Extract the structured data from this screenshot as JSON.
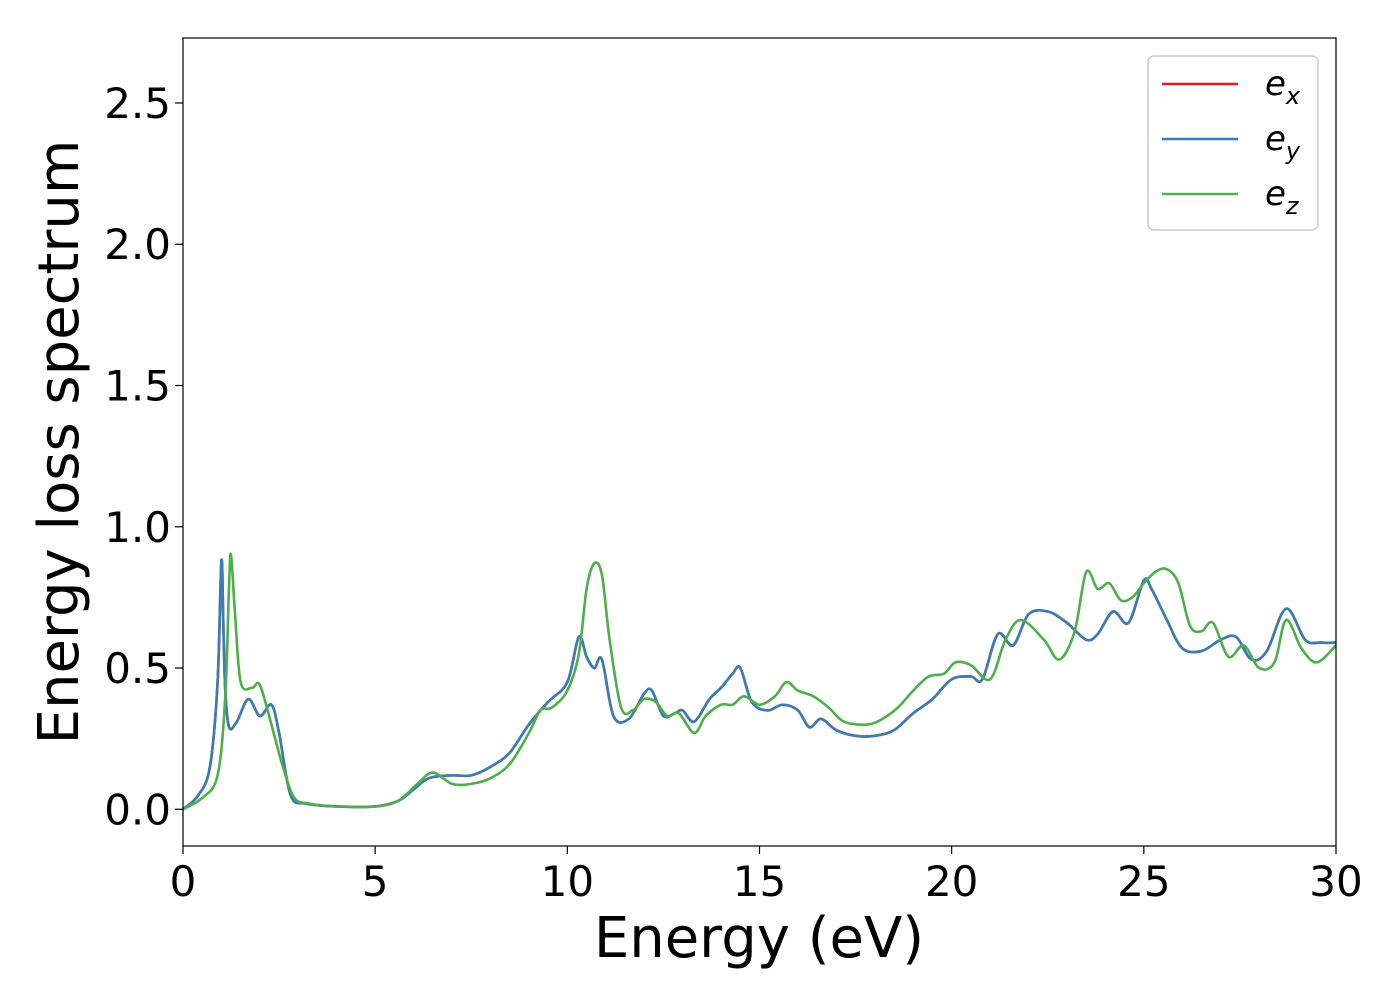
{
  "chart_data": {
    "type": "line",
    "title": "",
    "xlabel": "Energy (eV)",
    "ylabel": "Energy loss spectrum",
    "xlim": [
      0,
      30
    ],
    "ylim": [
      -0.13,
      2.73
    ],
    "xticks": [
      0,
      5,
      10,
      15,
      20,
      25,
      30
    ],
    "xtick_labels": [
      "0",
      "5",
      "10",
      "15",
      "20",
      "25",
      "30"
    ],
    "yticks": [
      0.0,
      0.5,
      1.0,
      1.5,
      2.0,
      2.5
    ],
    "ytick_labels": [
      "0.0",
      "0.5",
      "1.0",
      "1.5",
      "2.0",
      "2.5"
    ],
    "grid": false,
    "legend_position": "top-right",
    "series": [
      {
        "name": "e_x",
        "label_base": "e",
        "label_sub": "x",
        "color": "#e41a1c",
        "x": [
          0,
          0.4,
          0.7,
          0.9,
          1.0,
          1.05,
          1.1,
          1.2,
          1.4,
          1.7,
          2.0,
          2.3,
          2.5,
          2.8,
          3.2,
          4.0,
          5.0,
          5.6,
          6.0,
          6.4,
          7.0,
          7.5,
          8.0,
          8.5,
          9.0,
          9.5,
          10.0,
          10.3,
          10.5,
          10.7,
          10.9,
          11.2,
          11.6,
          12.0,
          12.2,
          12.5,
          12.8,
          13.0,
          13.3,
          13.7,
          14.0,
          14.3,
          14.5,
          14.8,
          15.2,
          15.6,
          16.0,
          16.3,
          16.6,
          17.0,
          17.5,
          18.0,
          18.5,
          19.0,
          19.5,
          20.0,
          20.5,
          20.8,
          21.2,
          21.6,
          22.0,
          22.5,
          23.0,
          23.5,
          23.8,
          24.2,
          24.6,
          25.0,
          25.2,
          25.6,
          26.0,
          26.5,
          27.0,
          27.4,
          27.8,
          28.2,
          28.7,
          29.2,
          29.6,
          30.0
        ],
        "values": [
          0.0,
          0.05,
          0.15,
          0.45,
          0.88,
          0.65,
          0.42,
          0.29,
          0.31,
          0.39,
          0.33,
          0.37,
          0.27,
          0.05,
          0.02,
          0.01,
          0.01,
          0.03,
          0.07,
          0.11,
          0.12,
          0.12,
          0.15,
          0.2,
          0.3,
          0.38,
          0.45,
          0.61,
          0.54,
          0.5,
          0.53,
          0.33,
          0.32,
          0.41,
          0.42,
          0.33,
          0.34,
          0.35,
          0.31,
          0.39,
          0.43,
          0.48,
          0.5,
          0.38,
          0.35,
          0.37,
          0.35,
          0.29,
          0.32,
          0.28,
          0.26,
          0.26,
          0.28,
          0.34,
          0.39,
          0.46,
          0.47,
          0.46,
          0.62,
          0.58,
          0.69,
          0.7,
          0.66,
          0.6,
          0.62,
          0.7,
          0.66,
          0.81,
          0.78,
          0.67,
          0.57,
          0.56,
          0.6,
          0.61,
          0.53,
          0.56,
          0.71,
          0.6,
          0.59,
          0.59
        ]
      },
      {
        "name": "e_y",
        "label_base": "e",
        "label_sub": "y",
        "color": "#377eb8",
        "x": [
          0,
          0.4,
          0.7,
          0.9,
          1.0,
          1.05,
          1.1,
          1.2,
          1.4,
          1.7,
          2.0,
          2.3,
          2.5,
          2.8,
          3.2,
          4.0,
          5.0,
          5.6,
          6.0,
          6.4,
          7.0,
          7.5,
          8.0,
          8.5,
          9.0,
          9.5,
          10.0,
          10.3,
          10.5,
          10.7,
          10.9,
          11.2,
          11.6,
          12.0,
          12.2,
          12.5,
          12.8,
          13.0,
          13.3,
          13.7,
          14.0,
          14.3,
          14.5,
          14.8,
          15.2,
          15.6,
          16.0,
          16.3,
          16.6,
          17.0,
          17.5,
          18.0,
          18.5,
          19.0,
          19.5,
          20.0,
          20.5,
          20.8,
          21.2,
          21.6,
          22.0,
          22.5,
          23.0,
          23.5,
          23.8,
          24.2,
          24.6,
          25.0,
          25.2,
          25.6,
          26.0,
          26.5,
          27.0,
          27.4,
          27.8,
          28.2,
          28.7,
          29.2,
          29.6,
          30.0
        ],
        "values": [
          0.0,
          0.05,
          0.15,
          0.45,
          0.88,
          0.65,
          0.42,
          0.29,
          0.31,
          0.39,
          0.33,
          0.37,
          0.27,
          0.05,
          0.02,
          0.01,
          0.01,
          0.03,
          0.07,
          0.11,
          0.12,
          0.12,
          0.15,
          0.2,
          0.3,
          0.38,
          0.45,
          0.61,
          0.54,
          0.5,
          0.53,
          0.33,
          0.32,
          0.41,
          0.42,
          0.33,
          0.34,
          0.35,
          0.31,
          0.39,
          0.43,
          0.48,
          0.5,
          0.38,
          0.35,
          0.37,
          0.35,
          0.29,
          0.32,
          0.28,
          0.26,
          0.26,
          0.28,
          0.34,
          0.39,
          0.46,
          0.47,
          0.46,
          0.62,
          0.58,
          0.69,
          0.7,
          0.66,
          0.6,
          0.62,
          0.7,
          0.66,
          0.81,
          0.78,
          0.67,
          0.57,
          0.56,
          0.6,
          0.61,
          0.53,
          0.56,
          0.71,
          0.6,
          0.59,
          0.59
        ]
      },
      {
        "name": "e_z",
        "label_base": "e",
        "label_sub": "z",
        "color": "#4daf4a",
        "x": [
          0,
          0.5,
          0.9,
          1.1,
          1.2,
          1.25,
          1.35,
          1.5,
          1.8,
          2.0,
          2.3,
          2.6,
          2.9,
          3.3,
          4.0,
          5.0,
          5.6,
          6.1,
          6.5,
          7.0,
          7.5,
          8.0,
          8.5,
          9.0,
          9.3,
          9.6,
          10.0,
          10.3,
          10.5,
          10.7,
          10.9,
          11.1,
          11.4,
          11.7,
          12.0,
          12.3,
          12.6,
          12.9,
          13.3,
          13.6,
          14.0,
          14.3,
          14.6,
          15.0,
          15.4,
          15.7,
          16.0,
          16.4,
          16.8,
          17.2,
          17.8,
          18.2,
          18.6,
          19.0,
          19.4,
          19.8,
          20.1,
          20.5,
          21.0,
          21.4,
          21.8,
          22.4,
          22.8,
          23.2,
          23.5,
          23.8,
          24.1,
          24.4,
          24.7,
          25.0,
          25.3,
          25.6,
          25.9,
          26.2,
          26.5,
          26.8,
          27.2,
          27.6,
          28.0,
          28.4,
          28.7,
          29.1,
          29.5,
          30.0
        ],
        "values": [
          0.0,
          0.04,
          0.12,
          0.4,
          0.8,
          0.9,
          0.7,
          0.45,
          0.43,
          0.44,
          0.3,
          0.15,
          0.04,
          0.02,
          0.01,
          0.01,
          0.03,
          0.09,
          0.13,
          0.09,
          0.09,
          0.11,
          0.16,
          0.27,
          0.35,
          0.36,
          0.42,
          0.55,
          0.78,
          0.87,
          0.83,
          0.6,
          0.36,
          0.35,
          0.39,
          0.38,
          0.33,
          0.34,
          0.27,
          0.33,
          0.37,
          0.37,
          0.4,
          0.37,
          0.4,
          0.45,
          0.42,
          0.4,
          0.36,
          0.31,
          0.3,
          0.32,
          0.36,
          0.42,
          0.47,
          0.48,
          0.52,
          0.51,
          0.46,
          0.6,
          0.67,
          0.6,
          0.53,
          0.63,
          0.84,
          0.78,
          0.8,
          0.74,
          0.75,
          0.8,
          0.84,
          0.85,
          0.8,
          0.65,
          0.63,
          0.66,
          0.54,
          0.58,
          0.5,
          0.52,
          0.67,
          0.57,
          0.52,
          0.58
        ]
      }
    ]
  }
}
